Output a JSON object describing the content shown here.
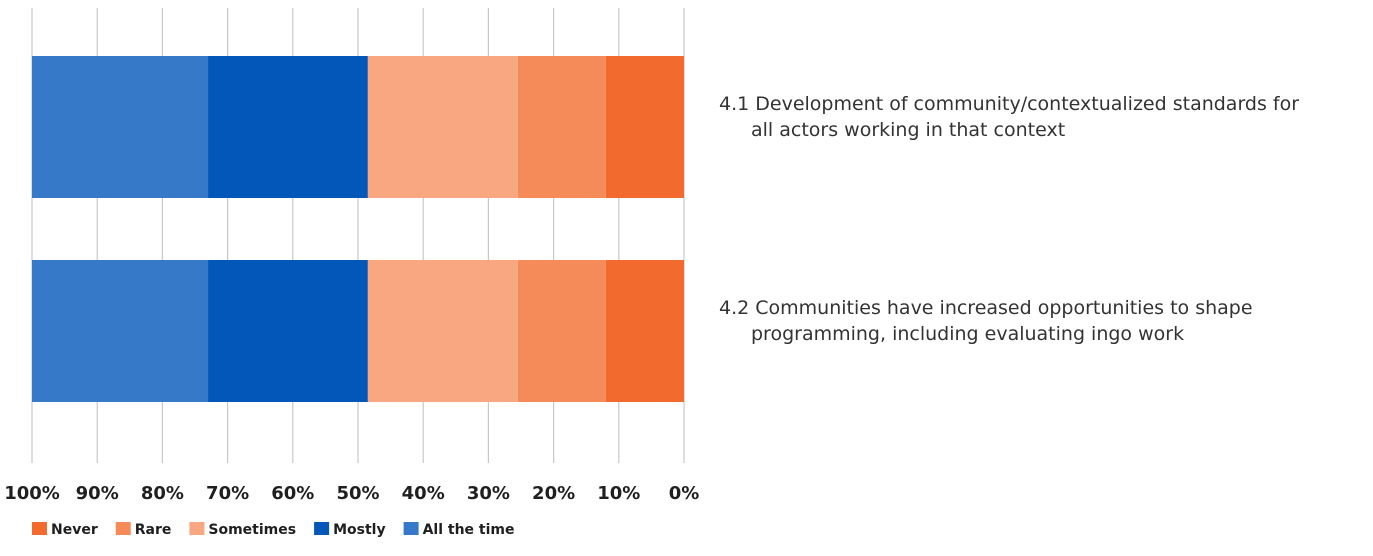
{
  "chart_data": {
    "type": "bar",
    "orientation": "horizontal",
    "stacked": true,
    "percent": true,
    "x_reversed": true,
    "xlim": [
      0,
      100
    ],
    "x_ticks": [
      100,
      90,
      80,
      70,
      60,
      50,
      40,
      30,
      20,
      10,
      0
    ],
    "x_tick_labels": [
      "100%",
      "90%",
      "80%",
      "70%",
      "60%",
      "50%",
      "40%",
      "30%",
      "20%",
      "10%",
      "0%"
    ],
    "grid": true,
    "legend_position": "bottom-left",
    "title": "",
    "xlabel": "",
    "ylabel": "",
    "categories": [
      {
        "number": "4.1",
        "lines": [
          "Development of community/contextualized standards for",
          "all actors working in that context"
        ]
      },
      {
        "number": "4.2",
        "lines": [
          "Communities have increased opportunities to shape",
          "programming, including evaluating ingo work"
        ]
      }
    ],
    "series": [
      {
        "name": "Never",
        "color": "#F26A2E",
        "values": [
          12,
          12
        ]
      },
      {
        "name": "Rare",
        "color": "#F58B58",
        "values": [
          13.5,
          13.5
        ]
      },
      {
        "name": "Sometimes",
        "color": "#F8A780",
        "values": [
          23,
          23
        ]
      },
      {
        "name": "Mostly",
        "color": "#0257B8",
        "values": [
          24.5,
          24.5
        ]
      },
      {
        "name": "All the time",
        "color": "#3679C8",
        "values": [
          27,
          27
        ]
      }
    ]
  }
}
